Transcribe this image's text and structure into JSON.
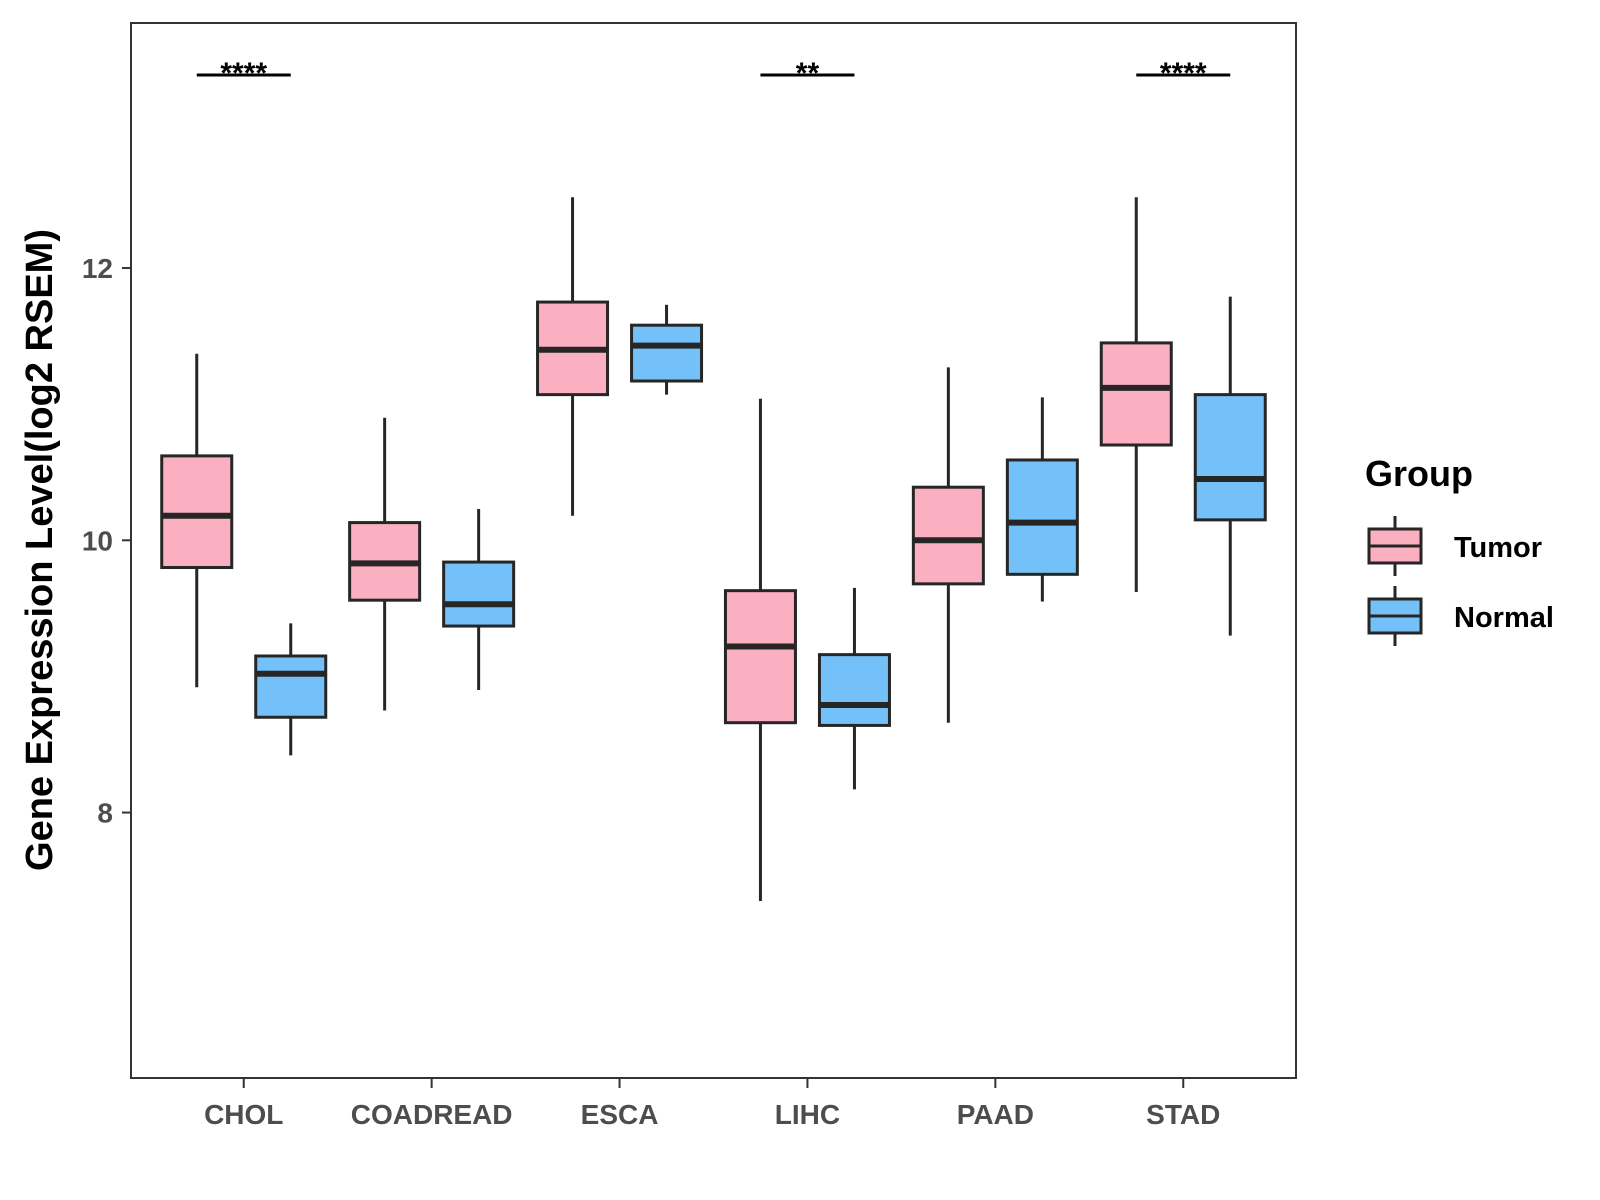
{
  "chart_data": {
    "type": "boxplot",
    "ylabel": "Gene Expression Level(log2 RSEM)",
    "xlabel": "",
    "ylim": [
      6.05,
      13.8
    ],
    "yticks": [
      8,
      10,
      12
    ],
    "categories": [
      "CHOL",
      "COADREAD",
      "ESCA",
      "LIHC",
      "PAAD",
      "STAD"
    ],
    "legend": {
      "title": "Group",
      "position": "right",
      "entries": [
        {
          "name": "Tumor",
          "color": "#FBB0C2"
        },
        {
          "name": "Normal",
          "color": "#74C0F8"
        }
      ]
    },
    "series": [
      {
        "name": "Tumor",
        "color": "#FBB0C2",
        "boxes": [
          {
            "min": 8.92,
            "q1": 9.8,
            "median": 10.18,
            "q3": 10.62,
            "max": 11.37
          },
          {
            "min": 8.75,
            "q1": 9.56,
            "median": 9.83,
            "q3": 10.13,
            "max": 10.9
          },
          {
            "min": 10.18,
            "q1": 11.07,
            "median": 11.4,
            "q3": 11.75,
            "max": 12.52
          },
          {
            "min": 7.35,
            "q1": 8.66,
            "median": 9.22,
            "q3": 9.63,
            "max": 11.04
          },
          {
            "min": 8.66,
            "q1": 9.68,
            "median": 10.0,
            "q3": 10.39,
            "max": 11.27
          },
          {
            "min": 9.62,
            "q1": 10.7,
            "median": 11.12,
            "q3": 11.45,
            "max": 12.52
          }
        ]
      },
      {
        "name": "Normal",
        "color": "#74C0F8",
        "boxes": [
          {
            "min": 8.42,
            "q1": 8.7,
            "median": 9.02,
            "q3": 9.15,
            "max": 9.39
          },
          {
            "min": 8.9,
            "q1": 9.37,
            "median": 9.53,
            "q3": 9.84,
            "max": 10.23
          },
          {
            "min": 11.07,
            "q1": 11.17,
            "median": 11.43,
            "q3": 11.58,
            "max": 11.73
          },
          {
            "min": 8.17,
            "q1": 8.64,
            "median": 8.79,
            "q3": 9.16,
            "max": 9.65
          },
          {
            "min": 9.55,
            "q1": 9.75,
            "median": 10.13,
            "q3": 10.59,
            "max": 11.05
          },
          {
            "min": 9.3,
            "q1": 10.15,
            "median": 10.45,
            "q3": 11.07,
            "max": 11.79
          }
        ]
      }
    ],
    "annotations": [
      {
        "category": "CHOL",
        "label": "****"
      },
      {
        "category": "LIHC",
        "label": "**"
      },
      {
        "category": "STAD",
        "label": "****"
      }
    ]
  }
}
